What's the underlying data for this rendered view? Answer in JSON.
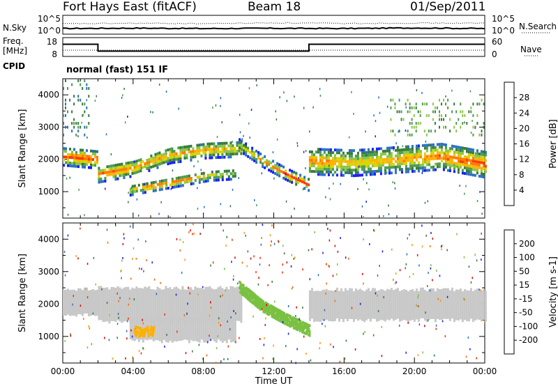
{
  "header": {
    "station": "Fort Hays East (fitACF)",
    "beam": "Beam 18",
    "date": "01/Sep/2011"
  },
  "side_labels": {
    "nsky": "N.Sky",
    "nsearch": "N.Search",
    "freq": "Freq.",
    "freq_unit": "[MHz]",
    "nave": "Nave",
    "cpid": "CPID"
  },
  "cpid_text": "normal (fast) 151 IF",
  "colors": {
    "power_scale": [
      "#1a1aff",
      "#2b6fc4",
      "#357a3a",
      "#4a9a50",
      "#8cc63f",
      "#d9d200",
      "#ffb000",
      "#ff7a00",
      "#ff3a00",
      "#e80000"
    ],
    "velocity_scale": [
      "#1a1aff",
      "#2b6fc4",
      "#357a3a",
      "#7ac142",
      "#bdbdbd",
      "#bdbdbd",
      "#ff9900",
      "#ff6a00",
      "#ff2a00",
      "#e00000"
    ],
    "ground_scatter": "#c8c8c8"
  },
  "chart_data": [
    {
      "type": "line",
      "panel": "noise",
      "x_unit": "hours UT",
      "yticks_left": [
        "10^5",
        "10^0"
      ],
      "yticks_right": [
        "10^5",
        "10^0"
      ],
      "series": [
        {
          "name": "N.Sky",
          "x": [
            0,
            4,
            8,
            12,
            16,
            20,
            24
          ],
          "y": [
            0.3,
            0.32,
            0.3,
            0.31,
            0.3,
            0.33,
            0.3
          ]
        },
        {
          "name": "N.Search",
          "x": [
            0,
            4,
            8,
            12,
            16,
            20,
            24
          ],
          "y": [
            0.55,
            0.58,
            0.56,
            0.6,
            0.57,
            0.59,
            0.58
          ]
        }
      ]
    },
    {
      "type": "line",
      "panel": "frequency",
      "yticks_left": [
        "18",
        "8"
      ],
      "yticks_right": [
        "60",
        "0"
      ],
      "ylim_freq": [
        8,
        18
      ],
      "ylim_nave": [
        0,
        60
      ],
      "series": [
        {
          "name": "Freq.",
          "x": [
            0,
            2,
            2,
            14,
            14,
            24
          ],
          "y": [
            14.5,
            14.5,
            10.8,
            10.8,
            14.5,
            14.5
          ]
        },
        {
          "name": "Nave",
          "x": [
            0,
            2,
            2,
            14,
            14,
            24
          ],
          "y": [
            20,
            20,
            20,
            20,
            20,
            20
          ]
        }
      ]
    },
    {
      "type": "heatmap",
      "panel": "power",
      "ylabel": "Slant Range [km]",
      "ylim": [
        180,
        4500
      ],
      "yticks": [
        1000,
        2000,
        3000,
        4000
      ],
      "colorbar_label": "Power [dB]",
      "colorbar_ticks": [
        4,
        8,
        12,
        16,
        20,
        24,
        28
      ],
      "zlim": [
        0,
        32
      ],
      "bands": [
        {
          "t_start": 0.0,
          "t_end": 2.0,
          "center_km": [
            2050,
            2000,
            1950
          ],
          "width_km": 550,
          "peak_db": [
            26,
            28,
            27
          ]
        },
        {
          "t_start": 2.0,
          "t_end": 10.2,
          "center_km": [
            1500,
            1700,
            2100,
            2250,
            2300
          ],
          "width_km": 500,
          "peak_db": [
            26,
            24,
            22,
            22,
            20
          ]
        },
        {
          "t_start": 3.8,
          "t_end": 9.8,
          "center_km": [
            1000,
            1150,
            1300,
            1450,
            1500
          ],
          "width_km": 300,
          "peak_db": [
            18,
            28,
            26,
            20,
            14
          ]
        },
        {
          "t_start": 10.0,
          "t_end": 14.0,
          "center_km": [
            2400,
            1900,
            1500,
            1150
          ],
          "width_km": 350,
          "peak_db": [
            16,
            22,
            28,
            28
          ]
        },
        {
          "t_start": 14.0,
          "t_end": 24.0,
          "center_km": [
            1900,
            1850,
            1950,
            2050,
            1800
          ],
          "width_km": 800,
          "peak_db": [
            26,
            20,
            22,
            26,
            28
          ]
        }
      ],
      "sparse_regions": [
        {
          "t_start": 0.0,
          "t_end": 1.5,
          "range_km": [
            2800,
            4500
          ],
          "db": 8
        },
        {
          "t_start": 18.5,
          "t_end": 24.0,
          "range_km": [
            2800,
            4000
          ],
          "db": 12
        }
      ]
    },
    {
      "type": "heatmap",
      "panel": "velocity",
      "xlabel": "Time UT",
      "ylabel": "Slant Range [km]",
      "ylim": [
        180,
        4500
      ],
      "yticks": [
        1000,
        2000,
        3000,
        4000
      ],
      "xticks": [
        "00:00",
        "04:00",
        "08:00",
        "12:00",
        "16:00",
        "20:00",
        "00:00"
      ],
      "xlim_hours": [
        0,
        24
      ],
      "colorbar_label": "Velocity [m s-1]",
      "colorbar_ticks": [
        200,
        100,
        50,
        15,
        -15,
        -50,
        -100,
        -200
      ],
      "ground_scatter_bands": [
        {
          "t_start": 0.0,
          "t_end": 2.0,
          "range_km": [
            1650,
            2450
          ]
        },
        {
          "t_start": 2.0,
          "t_end": 10.2,
          "range_km": [
            1450,
            2500
          ]
        },
        {
          "t_start": 3.8,
          "t_end": 9.8,
          "range_km": [
            850,
            1550
          ]
        },
        {
          "t_start": 14.0,
          "t_end": 24.0,
          "range_km": [
            1500,
            2450
          ]
        }
      ],
      "ionospheric_band": {
        "t_start": 10.0,
        "t_end": 14.0,
        "center_km": [
          2600,
          2000,
          1600,
          1250
        ],
        "velocity": 50
      }
    }
  ]
}
